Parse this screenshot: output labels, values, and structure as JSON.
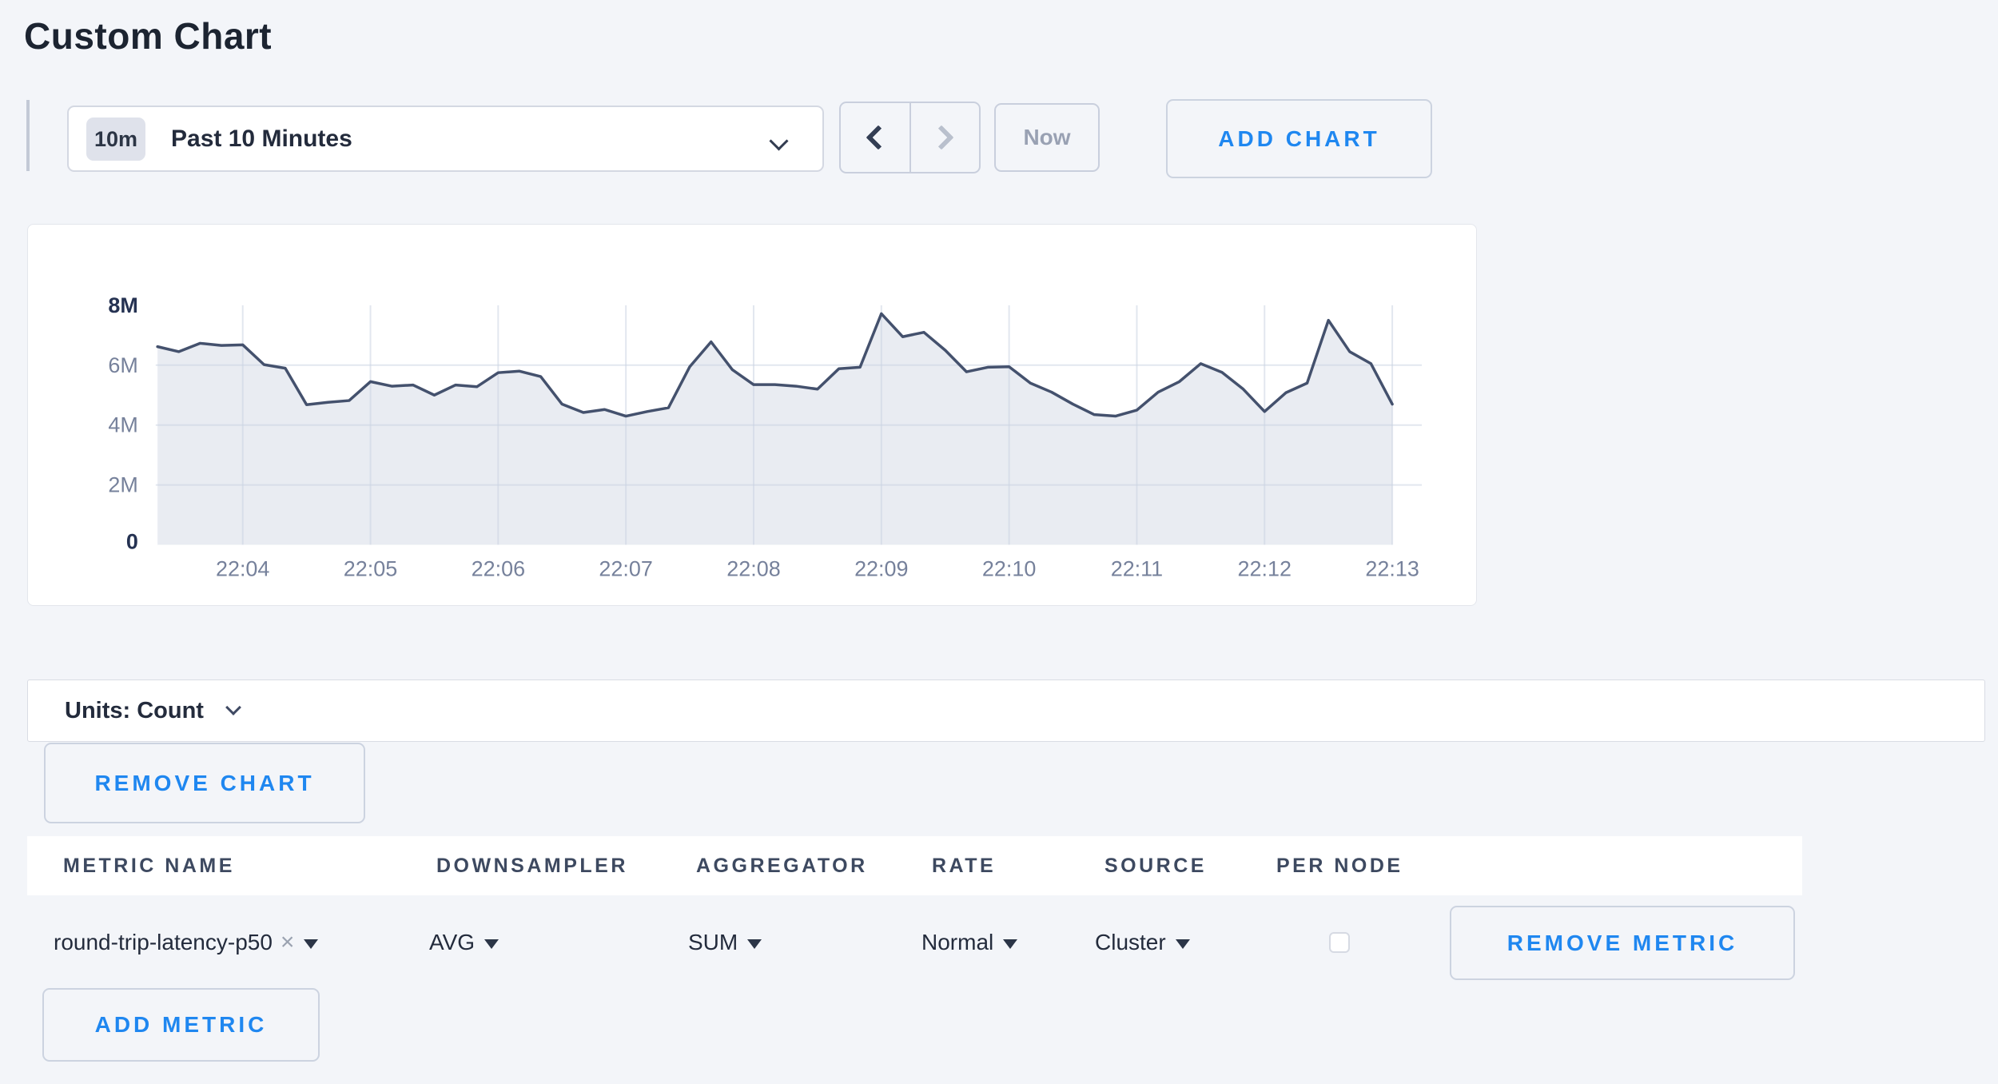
{
  "page": {
    "title": "Custom Chart"
  },
  "colors": {
    "accent_blue": "#1f87f0",
    "page_background": "#f3f5f9",
    "chart_line": "#44516d",
    "chart_area_fill": "#e9ecf2",
    "axis_label_gray": "#76819b",
    "axis_label_dark": "#253252"
  },
  "icons": {
    "clear": "×"
  },
  "toolbar": {
    "time_window_badge": "10m",
    "time_window_label": "Past 10 Minutes",
    "now_label": "Now",
    "add_chart_label": "ADD CHART"
  },
  "chart_data": {
    "type": "area",
    "title": "",
    "xlabel": "",
    "ylabel": "",
    "unit": "Count",
    "ylim": [
      0,
      8000000
    ],
    "y_ticks": [
      0,
      2000000,
      4000000,
      6000000,
      8000000
    ],
    "y_tick_labels": [
      "8M",
      "6M",
      "4M",
      "2M",
      "0"
    ],
    "x_tick_labels": [
      "22:04",
      "22:05",
      "22:06",
      "22:07",
      "22:08",
      "22:09",
      "22:10",
      "22:11",
      "22:12",
      "22:13"
    ],
    "grid": true,
    "legend": "none",
    "sample_interval_seconds": 10,
    "first_tick_point_index": 4,
    "series": [
      {
        "name": "round-trip-latency-p50",
        "values_millions": [
          6.62,
          6.45,
          6.73,
          6.66,
          6.68,
          6.02,
          5.9,
          4.68,
          4.76,
          4.82,
          5.45,
          5.3,
          5.34,
          5.0,
          5.34,
          5.28,
          5.75,
          5.8,
          5.62,
          4.7,
          4.42,
          4.52,
          4.3,
          4.45,
          4.58,
          5.95,
          6.78,
          5.85,
          5.35,
          5.35,
          5.3,
          5.2,
          5.88,
          5.93,
          7.72,
          6.95,
          7.1,
          6.5,
          5.78,
          5.93,
          5.95,
          5.4,
          5.1,
          4.7,
          4.35,
          4.3,
          4.5,
          5.1,
          5.45,
          6.05,
          5.76,
          5.2,
          4.45,
          5.08,
          5.4,
          7.5,
          6.45,
          6.05,
          4.7
        ]
      }
    ]
  },
  "units_bar": {
    "label": "Units: Count"
  },
  "chart_actions": {
    "remove_chart_label": "REMOVE CHART",
    "add_metric_label": "ADD METRIC"
  },
  "metrics_table": {
    "headers": [
      "METRIC NAME",
      "DOWNSAMPLER",
      "AGGREGATOR",
      "RATE",
      "SOURCE",
      "PER NODE"
    ],
    "rows": [
      {
        "metric_name": "round-trip-latency-p50",
        "downsampler": "AVG",
        "aggregator": "SUM",
        "rate": "Normal",
        "source": "Cluster",
        "per_node_checked": false,
        "remove_label": "REMOVE METRIC"
      }
    ]
  }
}
